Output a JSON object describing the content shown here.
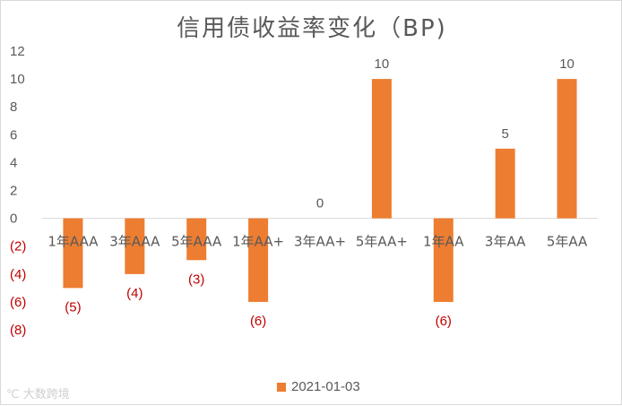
{
  "chart_data": {
    "type": "bar",
    "title": "信用债收益率变化（BP)",
    "categories": [
      "1年AAA",
      "3年AAA",
      "5年AAA",
      "1年AA+",
      "3年AA+",
      "5年AA+",
      "1年AA",
      "3年AA",
      "5年AA"
    ],
    "series": [
      {
        "name": "2021-01-03",
        "values": [
          -5,
          -4,
          -3,
          -6,
          0,
          10,
          -6,
          5,
          10
        ]
      }
    ],
    "data_labels": [
      "(5)",
      "(4)",
      "(3)",
      "(6)",
      "0",
      "10",
      "(6)",
      "5",
      "10"
    ],
    "y_ticks": [
      "12",
      "10",
      "8",
      "6",
      "4",
      "2",
      "0",
      "(2)",
      "(4)",
      "(6)",
      "(8)"
    ],
    "ylim": [
      -8,
      12
    ],
    "grid": false,
    "legend_position": "bottom"
  },
  "colors": {
    "bar": "#ed7d31",
    "negative_label": "#c00000",
    "text": "#595959",
    "axis": "#d9d9d9"
  },
  "watermark": "大数跨境"
}
